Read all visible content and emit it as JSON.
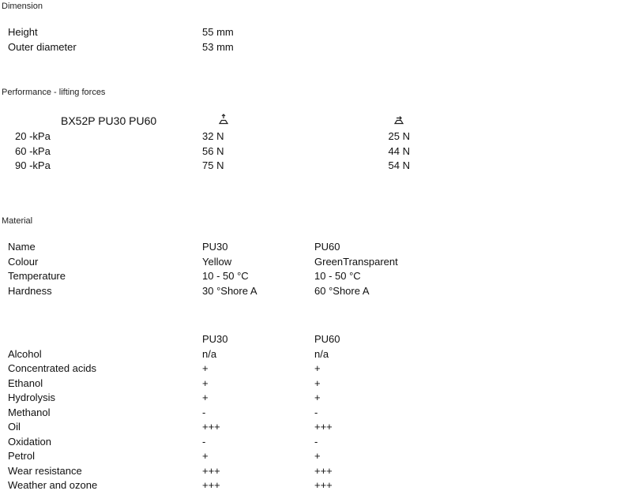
{
  "dimension": {
    "heading": "Dimension",
    "rows": [
      {
        "label": "Height",
        "value": "55 mm"
      },
      {
        "label": "Outer diameter",
        "value": "53 mm"
      }
    ]
  },
  "performance": {
    "heading": "Performance - lifting forces",
    "model": "BX52P PU30 PU60",
    "icons": [
      "vertical-lift-force-icon",
      "lateral-lift-force-icon"
    ],
    "rows": [
      {
        "label": "20 -kPa",
        "vertical": "32 N",
        "lateral": "25 N"
      },
      {
        "label": "60 -kPa",
        "vertical": "56 N",
        "lateral": "44 N"
      },
      {
        "label": "90 -kPa",
        "vertical": "75 N",
        "lateral": "54 N"
      }
    ]
  },
  "material": {
    "heading": "Material",
    "rows": [
      {
        "label": "Name",
        "pu30": "PU30",
        "pu60": "PU60"
      },
      {
        "label": "Colour",
        "pu30": "Yellow",
        "pu60": "GreenTransparent"
      },
      {
        "label": "Temperature",
        "pu30": "10 - 50 °C",
        "pu60": "10 - 50 °C"
      },
      {
        "label": "Hardness",
        "pu30": "30 °Shore A",
        "pu60": "60 °Shore A"
      }
    ]
  },
  "resistance": {
    "columns": [
      "PU30",
      "PU60"
    ],
    "rows": [
      {
        "label": "Alcohol",
        "pu30": "n/a",
        "pu60": "n/a"
      },
      {
        "label": "Concentrated acids",
        "pu30": "+",
        "pu60": "+"
      },
      {
        "label": "Ethanol",
        "pu30": "+",
        "pu60": "+"
      },
      {
        "label": "Hydrolysis",
        "pu30": "+",
        "pu60": "+"
      },
      {
        "label": "Methanol",
        "pu30": "-",
        "pu60": "-"
      },
      {
        "label": "Oil",
        "pu30": "+++",
        "pu60": "+++"
      },
      {
        "label": "Oxidation",
        "pu30": "-",
        "pu60": "-"
      },
      {
        "label": "Petrol",
        "pu30": "+",
        "pu60": "+"
      },
      {
        "label": "Wear resistance",
        "pu30": "+++",
        "pu60": "+++"
      },
      {
        "label": "Weather and ozone",
        "pu30": "+++",
        "pu60": "+++"
      }
    ]
  }
}
